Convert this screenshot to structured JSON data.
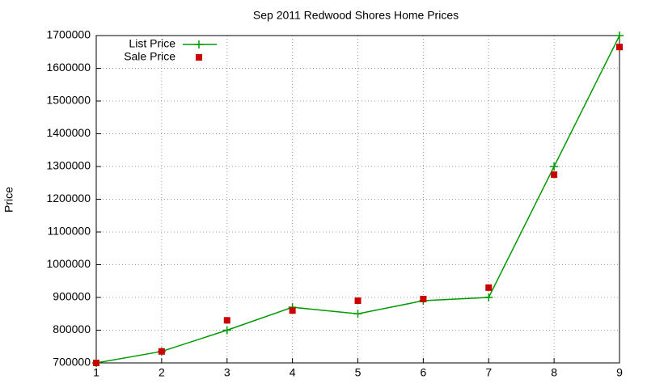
{
  "chart_data": {
    "type": "line",
    "title": "Sep 2011 Redwood Shores Home Prices",
    "y_label": "Price",
    "x": [
      1,
      2,
      3,
      4,
      5,
      6,
      7,
      8,
      9
    ],
    "xlim": [
      1,
      9
    ],
    "xticks": [
      1,
      2,
      3,
      4,
      5,
      6,
      7,
      8,
      9
    ],
    "ylim": [
      700000,
      1700000
    ],
    "yticks": [
      700000,
      800000,
      900000,
      1000000,
      1100000,
      1200000,
      1300000,
      1400000,
      1500000,
      1600000,
      1700000
    ],
    "grid": true,
    "legend": "top-left",
    "series": [
      {
        "name": "List Price",
        "color": "#009900",
        "line": true,
        "marker": "plus",
        "values": [
          700000,
          735000,
          800000,
          870000,
          850000,
          890000,
          900000,
          1300000,
          1700000
        ]
      },
      {
        "name": "Sale Price",
        "color": "#cc0000",
        "line": false,
        "marker": "square",
        "values": [
          700000,
          735000,
          830000,
          860000,
          890000,
          895000,
          930000,
          1275000,
          1665000
        ]
      }
    ]
  }
}
